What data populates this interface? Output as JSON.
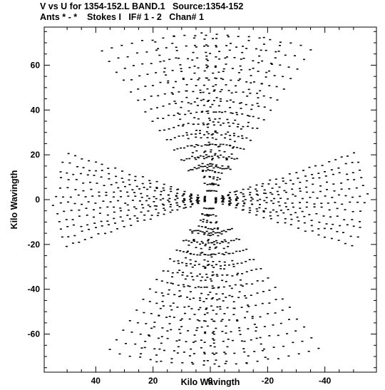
{
  "chart_data": {
    "type": "scatter",
    "title": "V vs U for 1354-152.L BAND.1   Source:1354-152",
    "subtitle": "Ants * - *    Stokes I   IF# 1 - 2   Chan# 1",
    "xlabel": "Kilo Wavingth",
    "ylabel": "Kilo Wavingth",
    "xlim": [
      58,
      -58
    ],
    "ylim": [
      -77,
      77
    ],
    "x_reversed": true,
    "grid": false,
    "x_ticks": [
      40,
      20,
      0,
      -20,
      -40
    ],
    "y_ticks": [
      60,
      40,
      20,
      0,
      -20,
      -40,
      -60
    ],
    "tick_labels_x": [
      "40",
      "20",
      "0",
      "-20",
      "-40"
    ],
    "tick_labels_y": [
      "60",
      "40",
      "20",
      "0",
      "-20",
      "-40",
      "-60"
    ],
    "point_color": "#000000",
    "description_of_pattern": "",
    "series": [
      {
        "generator": "uv-tracks",
        "baseline_arms_deg": [
          -2,
          2,
          6,
          10,
          14,
          18,
          22,
          -6,
          -10,
          -14,
          -18,
          -22
        ],
        "vertical_arms_deg": [
          75,
          80,
          85,
          88,
          90,
          92,
          95,
          100,
          105,
          110
        ],
        "max_radius": 75
      }
    ]
  }
}
